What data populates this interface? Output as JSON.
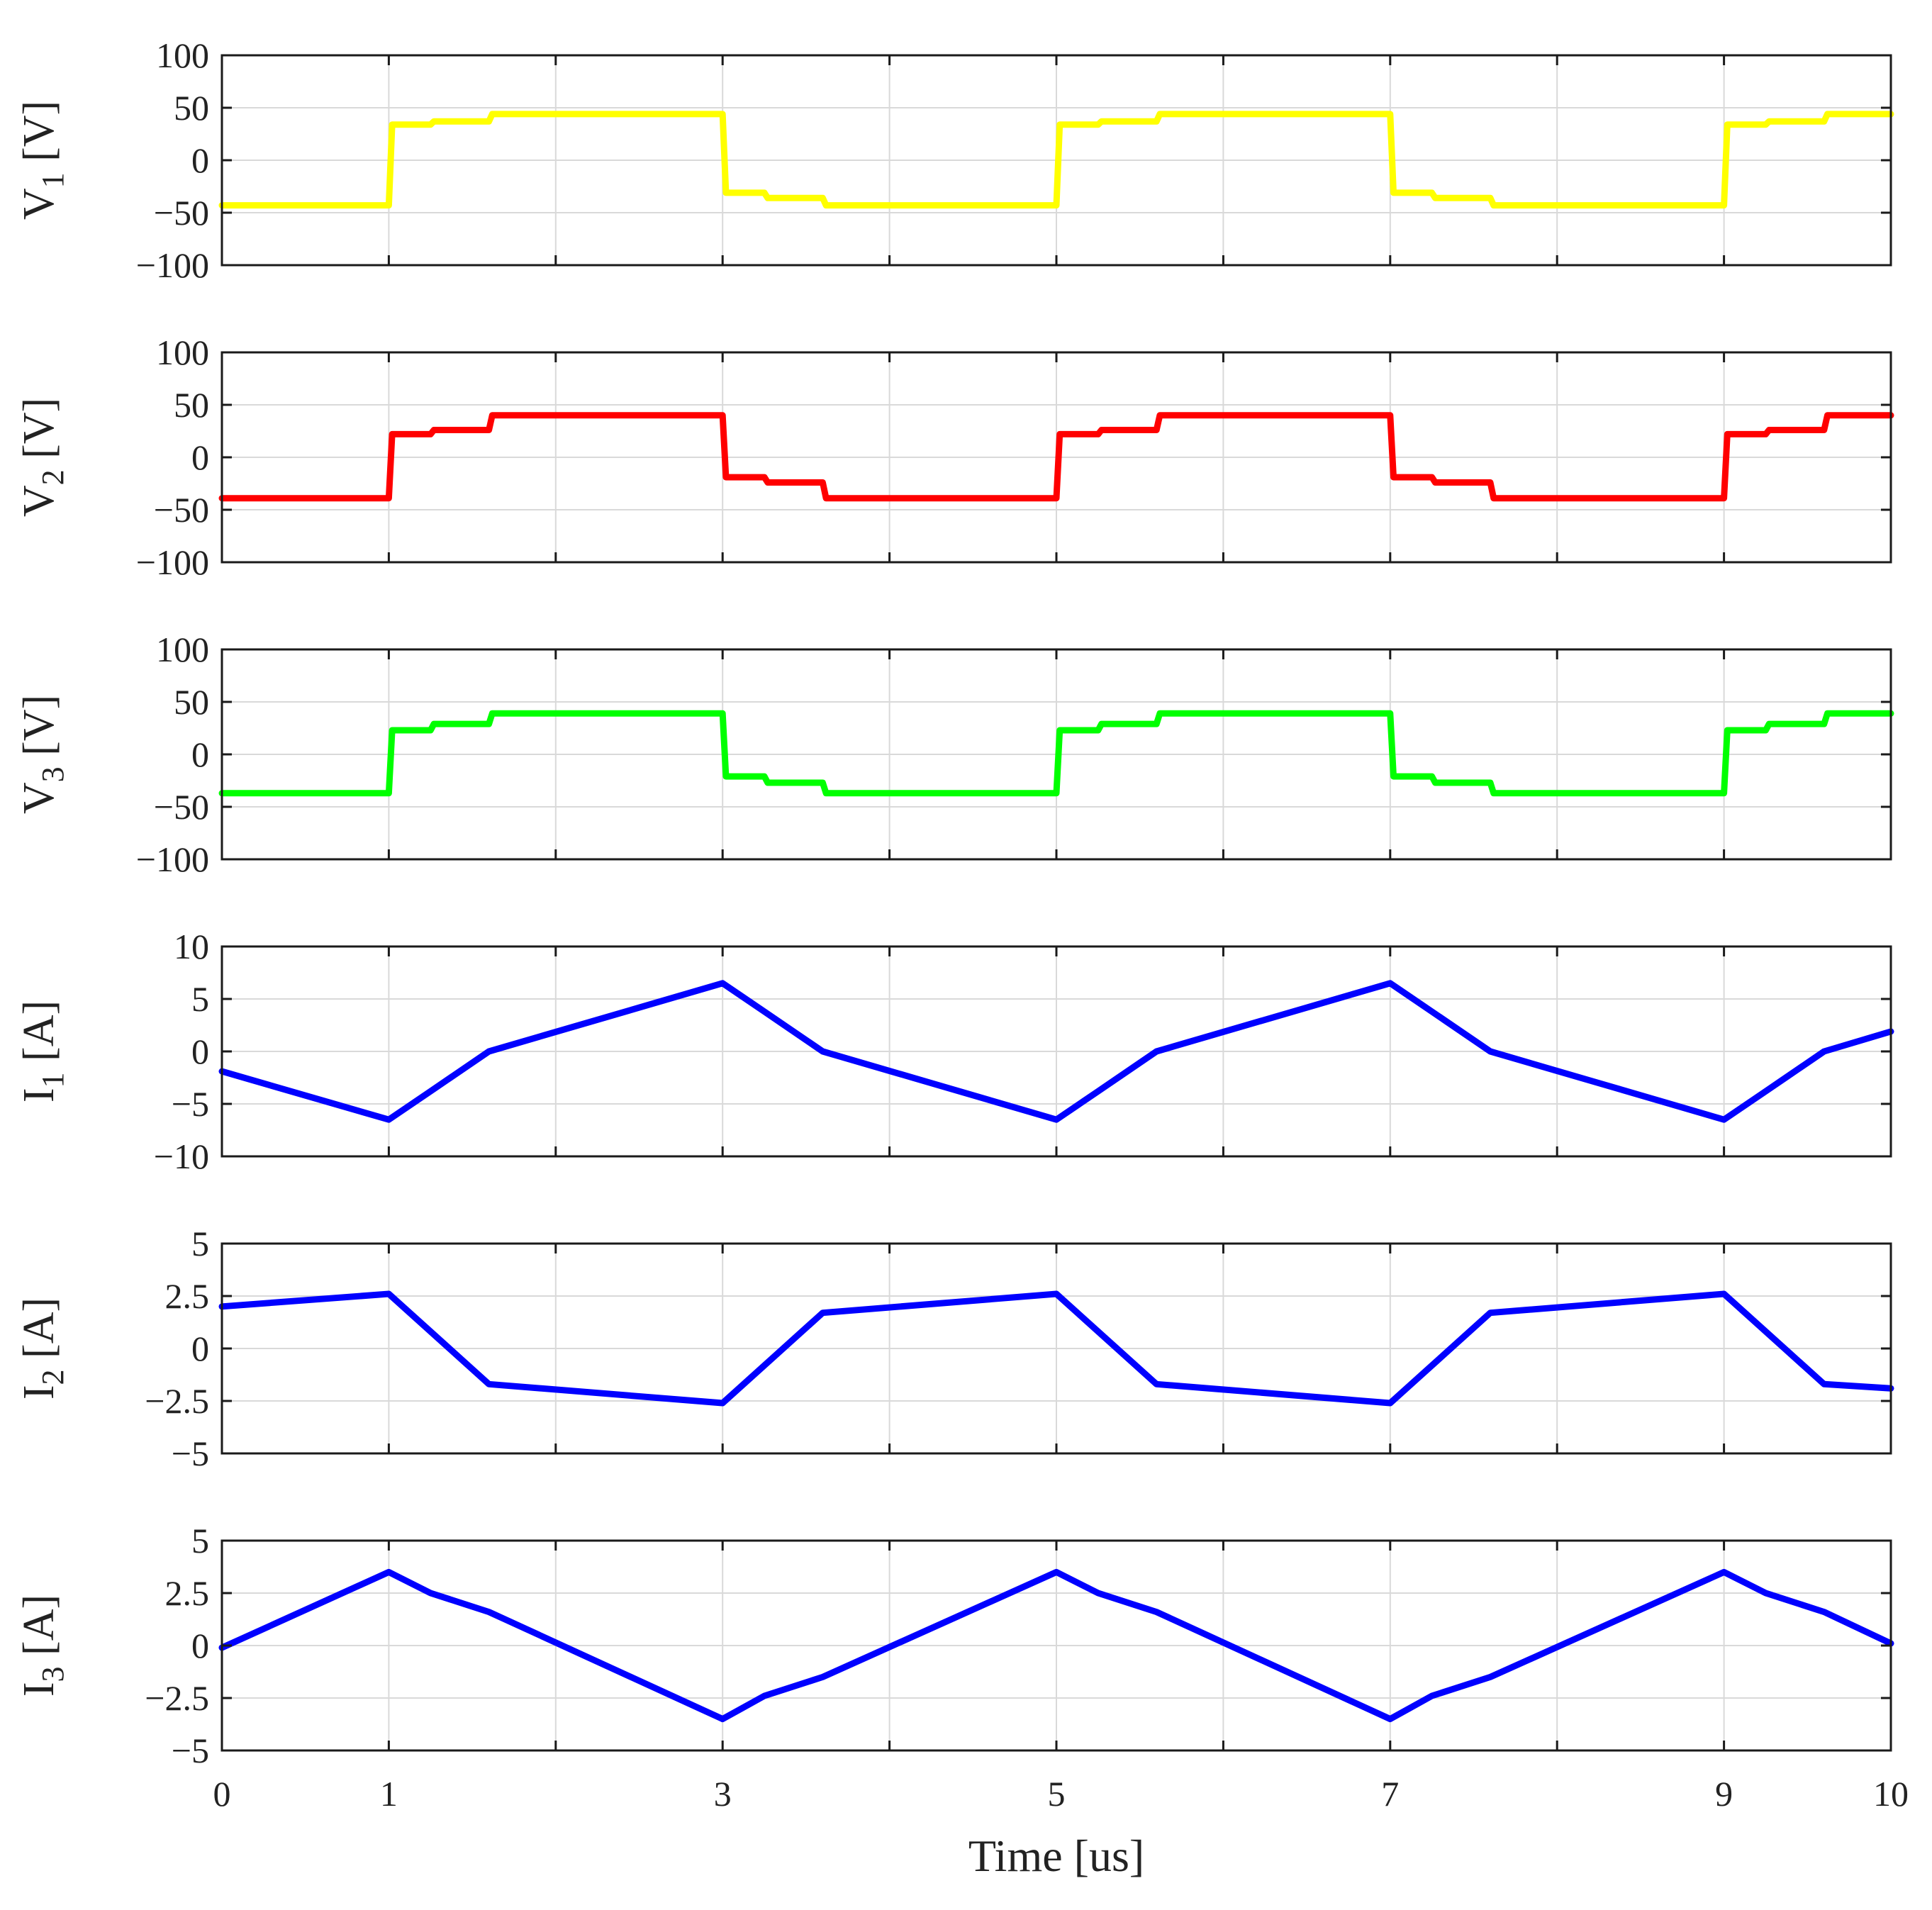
{
  "chart_data": [
    {
      "type": "line",
      "ylabel": "V",
      "ylabel_subscript": "1",
      "ylabel_unit": "[V]",
      "ylim": [
        -100,
        100
      ],
      "yticks": [
        100,
        50,
        0,
        -50,
        -100
      ],
      "ytick_labels": [
        "100",
        "50",
        "0",
        "−50",
        "−100"
      ],
      "xlim": [
        0,
        10
      ],
      "xticks": [
        0,
        1,
        2,
        3,
        4,
        5,
        6,
        7,
        8,
        9,
        10
      ],
      "grid": true,
      "series": [
        {
          "name": "V1",
          "color": "#ffff00",
          "x": [
            0,
            1,
            1.02,
            1.25,
            1.27,
            1.6,
            1.62,
            3.0,
            3.02,
            3.25,
            3.27,
            3.6,
            3.62,
            5.0,
            5.02,
            5.25,
            5.27,
            5.6,
            5.62,
            7.0,
            7.02,
            7.25,
            7.27,
            7.6,
            7.62,
            9.0,
            9.02,
            9.25,
            9.27,
            9.6,
            9.62,
            10
          ],
          "values": [
            -43,
            -43,
            34,
            34,
            37,
            37,
            44,
            44,
            -31,
            -31,
            -36,
            -36,
            -43,
            -43,
            34,
            34,
            37,
            37,
            44,
            44,
            -31,
            -31,
            -36,
            -36,
            -43,
            -43,
            34,
            34,
            37,
            37,
            44,
            44
          ]
        }
      ]
    },
    {
      "type": "line",
      "ylabel": "V",
      "ylabel_subscript": "2",
      "ylabel_unit": "[V]",
      "ylim": [
        -100,
        100
      ],
      "yticks": [
        100,
        50,
        0,
        -50,
        -100
      ],
      "ytick_labels": [
        "100",
        "50",
        "0",
        "−50",
        "−100"
      ],
      "xlim": [
        0,
        10
      ],
      "xticks": [
        0,
        1,
        2,
        3,
        4,
        5,
        6,
        7,
        8,
        9,
        10
      ],
      "grid": true,
      "series": [
        {
          "name": "V2",
          "color": "#ff0000",
          "x": [
            0,
            1,
            1.02,
            1.25,
            1.27,
            1.6,
            1.62,
            3.0,
            3.02,
            3.25,
            3.27,
            3.6,
            3.62,
            5.0,
            5.02,
            5.25,
            5.27,
            5.6,
            5.62,
            7.0,
            7.02,
            7.25,
            7.27,
            7.6,
            7.62,
            9.0,
            9.02,
            9.25,
            9.27,
            9.6,
            9.62,
            10
          ],
          "values": [
            -39,
            -39,
            22,
            22,
            26,
            26,
            40,
            40,
            -19,
            -19,
            -24,
            -24,
            -39,
            -39,
            22,
            22,
            26,
            26,
            40,
            40,
            -19,
            -19,
            -24,
            -24,
            -39,
            -39,
            22,
            22,
            26,
            26,
            40,
            40
          ]
        }
      ]
    },
    {
      "type": "line",
      "ylabel": "V",
      "ylabel_subscript": "3",
      "ylabel_unit": "[V]",
      "ylim": [
        -100,
        100
      ],
      "yticks": [
        100,
        50,
        0,
        -50,
        -100
      ],
      "ytick_labels": [
        "100",
        "50",
        "0",
        "−50",
        "−100"
      ],
      "xlim": [
        0,
        10
      ],
      "xticks": [
        0,
        1,
        2,
        3,
        4,
        5,
        6,
        7,
        8,
        9,
        10
      ],
      "grid": true,
      "series": [
        {
          "name": "V3",
          "color": "#00ff00",
          "x": [
            0,
            1,
            1.02,
            1.25,
            1.27,
            1.6,
            1.62,
            3.0,
            3.02,
            3.25,
            3.27,
            3.6,
            3.62,
            5.0,
            5.02,
            5.25,
            5.27,
            5.6,
            5.62,
            7.0,
            7.02,
            7.25,
            7.27,
            7.6,
            7.62,
            9.0,
            9.02,
            9.25,
            9.27,
            9.6,
            9.62,
            10
          ],
          "values": [
            -37,
            -37,
            23,
            23,
            29,
            29,
            39,
            39,
            -21,
            -21,
            -27,
            -27,
            -37,
            -37,
            23,
            23,
            29,
            29,
            39,
            39,
            -21,
            -21,
            -27,
            -27,
            -37,
            -37,
            23,
            23,
            29,
            29,
            39,
            39
          ]
        }
      ]
    },
    {
      "type": "line",
      "ylabel": "I",
      "ylabel_subscript": "1",
      "ylabel_unit": "[A]",
      "ylim": [
        -10,
        10
      ],
      "yticks": [
        10,
        5,
        0,
        -5,
        -10
      ],
      "ytick_labels": [
        "10",
        "5",
        "0",
        "−5",
        "−10"
      ],
      "xlim": [
        0,
        10
      ],
      "xticks": [
        0,
        1,
        2,
        3,
        4,
        5,
        6,
        7,
        8,
        9,
        10
      ],
      "grid": true,
      "series": [
        {
          "name": "I1",
          "color": "#0000ff",
          "x": [
            0,
            1.0,
            1.25,
            1.6,
            3.0,
            3.25,
            3.6,
            5.0,
            5.25,
            5.6,
            7.0,
            7.25,
            7.6,
            9.0,
            9.25,
            9.6,
            10
          ],
          "values": [
            -1.9,
            -6.5,
            -3.8,
            0.0,
            6.5,
            3.8,
            0.0,
            -6.5,
            -3.8,
            0.0,
            6.5,
            3.8,
            0.0,
            -6.5,
            -3.8,
            0.0,
            1.9
          ]
        }
      ]
    },
    {
      "type": "line",
      "ylabel": "I",
      "ylabel_subscript": "2",
      "ylabel_unit": "[A]",
      "ylim": [
        -5,
        5
      ],
      "yticks": [
        5,
        2.5,
        0,
        -2.5,
        -5
      ],
      "ytick_labels": [
        "5",
        "2.5",
        "0",
        "−2.5",
        "−5"
      ],
      "xlim": [
        0,
        10
      ],
      "xticks": [
        0,
        1,
        2,
        3,
        4,
        5,
        6,
        7,
        8,
        9,
        10
      ],
      "grid": true,
      "series": [
        {
          "name": "I2",
          "color": "#0000ff",
          "x": [
            0,
            1.0,
            1.6,
            3.0,
            3.6,
            5.0,
            5.6,
            7.0,
            7.6,
            9.0,
            9.6,
            10
          ],
          "values": [
            2.0,
            2.6,
            -1.7,
            -2.6,
            1.7,
            2.6,
            -1.7,
            -2.6,
            1.7,
            2.6,
            -1.7,
            -1.9
          ]
        }
      ]
    },
    {
      "type": "line",
      "ylabel": "I",
      "ylabel_subscript": "3",
      "ylabel_unit": "[A]",
      "ylim": [
        -5,
        5
      ],
      "yticks": [
        5,
        2.5,
        0,
        -2.5,
        -5
      ],
      "ytick_labels": [
        "5",
        "2.5",
        "0",
        "−2.5",
        "−5"
      ],
      "xlim": [
        0,
        10
      ],
      "xticks": [
        0,
        1,
        2,
        3,
        4,
        5,
        6,
        7,
        8,
        9,
        10
      ],
      "xtick_labels": [
        "0",
        "1",
        "",
        "3",
        "",
        "5",
        "",
        "7",
        "",
        "9",
        "10"
      ],
      "xlabel": "Time [us]",
      "grid": true,
      "series": [
        {
          "name": "I3",
          "color": "#0000ff",
          "x": [
            0,
            1.0,
            1.25,
            1.6,
            3.0,
            3.25,
            3.6,
            5.0,
            5.25,
            5.6,
            7.0,
            7.25,
            7.6,
            9.0,
            9.25,
            9.6,
            10
          ],
          "values": [
            -0.1,
            3.5,
            2.5,
            1.6,
            -3.5,
            -2.4,
            -1.5,
            3.5,
            2.5,
            1.6,
            -3.5,
            -2.4,
            -1.5,
            3.5,
            2.5,
            1.6,
            0.1
          ]
        }
      ]
    }
  ]
}
